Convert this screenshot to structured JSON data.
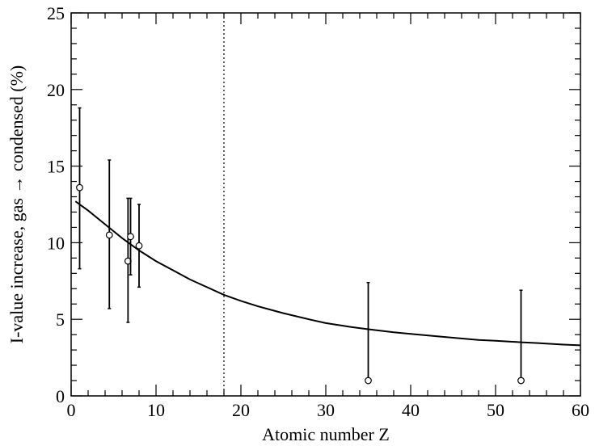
{
  "chart_data": {
    "type": "scatter",
    "xlabel": "Atomic number Z",
    "ylabel": "I-value increase, gas → condensed (%)",
    "xlim": [
      0,
      60
    ],
    "ylim": [
      0,
      25
    ],
    "x_ticks": [
      0,
      10,
      20,
      30,
      40,
      50,
      60
    ],
    "y_ticks": [
      0,
      5,
      10,
      15,
      20,
      25
    ],
    "grid": false,
    "legend": "none",
    "series": [
      {
        "kind": "points_with_error_bars",
        "marker": "open-circle",
        "points": [
          {
            "x": 1,
            "y": 13.6,
            "err_low": 8.3,
            "err_high": 18.8
          },
          {
            "x": 4.5,
            "y": 10.5,
            "err_low": 5.7,
            "err_high": 15.4
          },
          {
            "x": 6.7,
            "y": 8.8,
            "err_low": 4.8,
            "err_high": 12.9
          },
          {
            "x": 7,
            "y": 10.4,
            "err_low": 7.9,
            "err_high": 12.9
          },
          {
            "x": 8,
            "y": 9.8,
            "err_low": 7.1,
            "err_high": 12.5
          },
          {
            "x": 35,
            "y": 1.0,
            "err_low": 1.0,
            "err_high": 7.4
          },
          {
            "x": 53,
            "y": 1.0,
            "err_low": 1.0,
            "err_high": 6.9
          }
        ]
      },
      {
        "kind": "fit_curve",
        "x": [
          0.5,
          2,
          4,
          6,
          8,
          10,
          12,
          14,
          16,
          18,
          20,
          22,
          25,
          28,
          30,
          33,
          35,
          38,
          40,
          43,
          45,
          48,
          50,
          53,
          55,
          58,
          60
        ],
        "y": [
          12.7,
          12.1,
          11.2,
          10.3,
          9.5,
          8.8,
          8.2,
          7.6,
          7.1,
          6.6,
          6.2,
          5.85,
          5.4,
          5.0,
          4.75,
          4.5,
          4.35,
          4.15,
          4.05,
          3.9,
          3.8,
          3.65,
          3.6,
          3.5,
          3.45,
          3.35,
          3.3
        ]
      },
      {
        "kind": "vertical_reference_line",
        "style": "dotted",
        "x": 18
      }
    ]
  }
}
